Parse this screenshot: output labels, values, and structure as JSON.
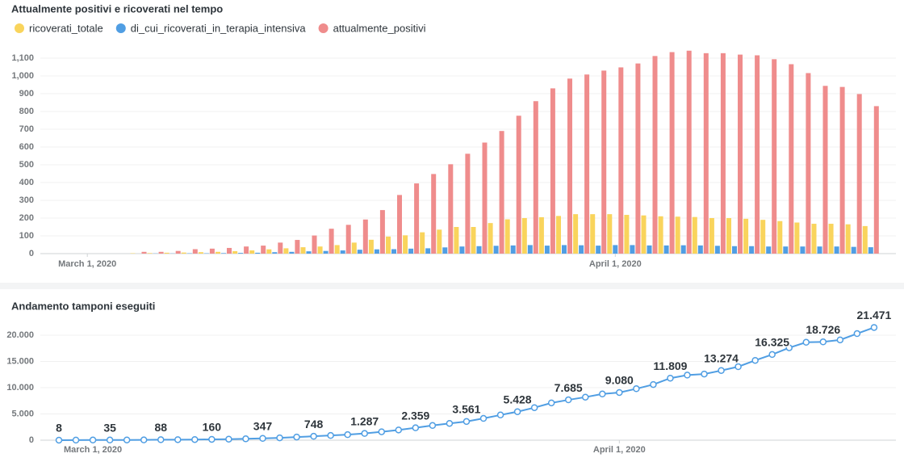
{
  "chart_data": [
    {
      "type": "bar",
      "title": "Attualmente positivi e ricoverati nel tempo",
      "x": [
        "2020-02-28",
        "2020-02-29",
        "2020-03-01",
        "2020-03-02",
        "2020-03-03",
        "2020-03-04",
        "2020-03-05",
        "2020-03-06",
        "2020-03-07",
        "2020-03-08",
        "2020-03-09",
        "2020-03-10",
        "2020-03-11",
        "2020-03-12",
        "2020-03-13",
        "2020-03-14",
        "2020-03-15",
        "2020-03-16",
        "2020-03-17",
        "2020-03-18",
        "2020-03-19",
        "2020-03-20",
        "2020-03-21",
        "2020-03-22",
        "2020-03-23",
        "2020-03-24",
        "2020-03-25",
        "2020-03-26",
        "2020-03-27",
        "2020-03-28",
        "2020-03-29",
        "2020-03-30",
        "2020-03-31",
        "2020-04-01",
        "2020-04-02",
        "2020-04-03",
        "2020-04-04",
        "2020-04-05",
        "2020-04-06",
        "2020-04-07",
        "2020-04-08",
        "2020-04-09",
        "2020-04-10",
        "2020-04-11",
        "2020-04-12",
        "2020-04-13",
        "2020-04-14",
        "2020-04-15",
        "2020-04-16"
      ],
      "xticks": [
        {
          "value": "2020-03-01",
          "label": "March 1, 2020"
        },
        {
          "value": "2020-04-01",
          "label": "April 1, 2020"
        }
      ],
      "series": [
        {
          "name": "ricoverati_totale",
          "color": "#f9d45c",
          "values": [
            0,
            0,
            0,
            0,
            0,
            2,
            3,
            5,
            6,
            8,
            10,
            14,
            18,
            24,
            30,
            36,
            40,
            48,
            62,
            78,
            96,
            103,
            120,
            135,
            150,
            150,
            172,
            193,
            200,
            205,
            212,
            222,
            222,
            222,
            218,
            215,
            210,
            208,
            206,
            200,
            200,
            196,
            190,
            183,
            175,
            168,
            168,
            165,
            155
          ]
        },
        {
          "name": "di_cui_ricoverati_in_terapia_intensiva",
          "color": "#509ee3",
          "values": [
            0,
            0,
            0,
            0,
            0,
            0,
            1,
            1,
            2,
            2,
            3,
            4,
            5,
            8,
            10,
            13,
            15,
            18,
            22,
            24,
            25,
            28,
            30,
            35,
            40,
            42,
            44,
            46,
            48,
            45,
            48,
            47,
            45,
            48,
            48,
            46,
            46,
            47,
            46,
            44,
            42,
            42,
            40,
            40,
            40,
            40,
            40,
            38,
            36
          ]
        },
        {
          "name": "attualmente_positivi",
          "color": "#ef8c8c",
          "values": [
            0,
            0,
            0,
            0,
            0,
            10,
            10,
            15,
            25,
            28,
            32,
            40,
            45,
            62,
            77,
            102,
            140,
            162,
            192,
            245,
            330,
            395,
            448,
            503,
            562,
            625,
            690,
            776,
            858,
            930,
            985,
            1008,
            1030,
            1048,
            1070,
            1112,
            1134,
            1142,
            1128,
            1128,
            1120,
            1116,
            1094,
            1066,
            1016,
            944,
            938,
            898,
            830
          ]
        }
      ],
      "ylim": [
        0,
        1200
      ],
      "yticks": [
        0,
        100,
        200,
        300,
        400,
        500,
        600,
        700,
        800,
        900,
        {
          "value": 1000,
          "label": "1,000"
        },
        {
          "value": 1100,
          "label": "1,100"
        }
      ],
      "grid": true,
      "legend": "top"
    },
    {
      "type": "line",
      "title": "Andamento tamponi eseguiti",
      "x": [
        "2020-02-28",
        "2020-02-29",
        "2020-03-01",
        "2020-03-02",
        "2020-03-03",
        "2020-03-04",
        "2020-03-05",
        "2020-03-06",
        "2020-03-07",
        "2020-03-08",
        "2020-03-09",
        "2020-03-10",
        "2020-03-11",
        "2020-03-12",
        "2020-03-13",
        "2020-03-14",
        "2020-03-15",
        "2020-03-16",
        "2020-03-17",
        "2020-03-18",
        "2020-03-19",
        "2020-03-20",
        "2020-03-21",
        "2020-03-22",
        "2020-03-23",
        "2020-03-24",
        "2020-03-25",
        "2020-03-26",
        "2020-03-27",
        "2020-03-28",
        "2020-03-29",
        "2020-03-30",
        "2020-03-31",
        "2020-04-01",
        "2020-04-02",
        "2020-04-03",
        "2020-04-04",
        "2020-04-05",
        "2020-04-06",
        "2020-04-07",
        "2020-04-08",
        "2020-04-09",
        "2020-04-10",
        "2020-04-11",
        "2020-04-12",
        "2020-04-13",
        "2020-04-14",
        "2020-04-15",
        "2020-04-16"
      ],
      "xticks": [
        {
          "value": "2020-03-01",
          "label": "March 1, 2020"
        },
        {
          "value": "2020-04-01",
          "label": "April 1, 2020"
        }
      ],
      "color": "#509ee3",
      "values": [
        8,
        20,
        30,
        35,
        40,
        50,
        88,
        100,
        120,
        160,
        200,
        260,
        347,
        450,
        600,
        748,
        900,
        1050,
        1287,
        1600,
        1950,
        2359,
        2800,
        3200,
        3561,
        4150,
        4800,
        5428,
        6200,
        7100,
        7685,
        8200,
        8800,
        9080,
        9800,
        10600,
        11809,
        12400,
        12600,
        13274,
        14000,
        15200,
        16325,
        17600,
        18650,
        18726,
        19100,
        20300,
        21471
      ],
      "value_labels": [
        "8",
        null,
        null,
        "35",
        null,
        null,
        "88",
        null,
        null,
        "160",
        null,
        null,
        "347",
        null,
        null,
        "748",
        null,
        null,
        "1.287",
        null,
        null,
        "2.359",
        null,
        null,
        "3.561",
        null,
        null,
        "5.428",
        null,
        null,
        "7.685",
        null,
        null,
        "9.080",
        null,
        null,
        "11.809",
        null,
        null,
        "13.274",
        null,
        null,
        "16.325",
        null,
        null,
        "18.726",
        null,
        null,
        "21.471"
      ],
      "ylim": [
        0,
        22000
      ],
      "yticks": [
        0,
        {
          "value": 5000,
          "label": "5.000"
        },
        {
          "value": 10000,
          "label": "10.000"
        },
        {
          "value": 15000,
          "label": "15.000"
        },
        {
          "value": 20000,
          "label": "20.000"
        }
      ],
      "grid": true
    }
  ]
}
